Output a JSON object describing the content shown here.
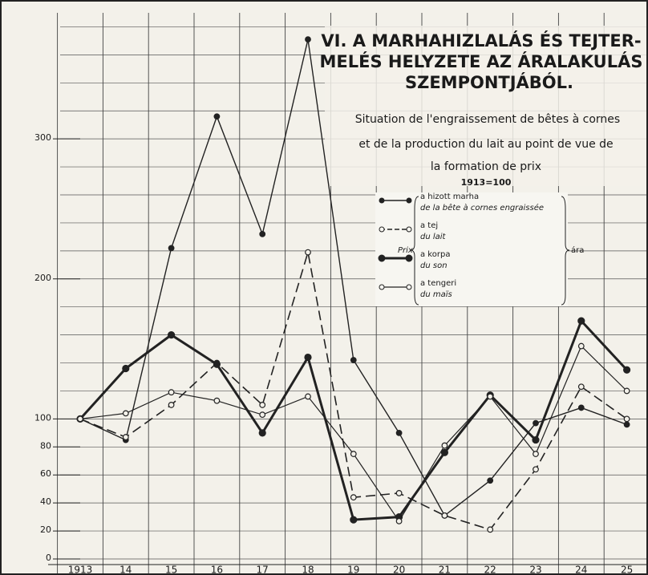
{
  "chart_data": {
    "type": "line",
    "title": [
      "VI. A MARHAHIZLALÁS ÉS TEJTER-",
      "MELÉS HELYZETE AZ ÁRALAKULÁS",
      "SZEMPONTJÁBÓL."
    ],
    "subtitle": [
      "Situation de l'engraissement de bêtes à cornes",
      "et de la production du lait au point de vue de",
      "la formation de prix"
    ],
    "annotation": "1913=100",
    "legend_prefix": "Prix",
    "legend_suffix": "ára",
    "categories": [
      "1913",
      "14",
      "15",
      "16",
      "17",
      "18",
      "19",
      "20",
      "21",
      "22",
      "23",
      "24",
      "25"
    ],
    "series": [
      {
        "name": "a hizott marha",
        "name_fr": "de la bête à cornes engraissée",
        "color": "#222222",
        "width": 1.4,
        "dash": "none",
        "marker": "filled",
        "values": [
          100,
          85,
          222,
          316,
          232,
          371,
          142,
          90,
          31,
          56,
          97,
          108,
          96
        ]
      },
      {
        "name": "a tej",
        "name_fr": "du lait",
        "color": "#222222",
        "width": 1.6,
        "dash": "12 6",
        "marker": "hollow",
        "values": [
          100,
          87,
          110,
          140,
          110,
          219,
          44,
          47,
          31,
          21,
          64,
          123,
          100
        ]
      },
      {
        "name": "a korpa",
        "name_fr": "du son",
        "color": "#222222",
        "width": 3,
        "dash": "none",
        "marker": "filled",
        "values": [
          100,
          136,
          160,
          139,
          90,
          144,
          28,
          30,
          76,
          117,
          85,
          170,
          135
        ]
      },
      {
        "name": "a tengeri",
        "name_fr": "du maïs",
        "color": "#222222",
        "width": 1.2,
        "dash": "none",
        "marker": "hollow",
        "values": [
          100,
          104,
          119,
          113,
          103,
          116,
          75,
          27,
          81,
          116,
          75,
          152,
          120
        ]
      }
    ],
    "ylim": [
      0,
      390
    ],
    "yticks": [
      0,
      20,
      40,
      60,
      80,
      100,
      200,
      300
    ],
    "grid": true,
    "grid_step": 20
  }
}
